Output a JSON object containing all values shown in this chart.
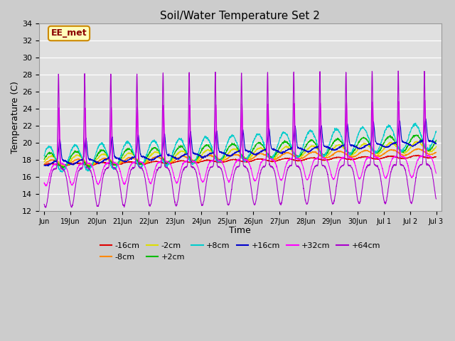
{
  "title": "Soil/Water Temperature Set 2",
  "xlabel": "Time",
  "ylabel": "Temperature (C)",
  "ylim": [
    12,
    34
  ],
  "yticks": [
    12,
    14,
    16,
    18,
    20,
    22,
    24,
    26,
    28,
    30,
    32,
    34
  ],
  "facecolor": "#e8e8e8",
  "series": [
    {
      "label": "-16cm",
      "color": "#dd0000"
    },
    {
      "label": "-8cm",
      "color": "#ff8800"
    },
    {
      "label": "-2cm",
      "color": "#dddd00"
    },
    {
      "label": "+2cm",
      "color": "#00bb00"
    },
    {
      "label": "+8cm",
      "color": "#00cccc"
    },
    {
      "label": "+16cm",
      "color": "#0000cc"
    },
    {
      "label": "+32cm",
      "color": "#ff00ff"
    },
    {
      "label": "+64cm",
      "color": "#aa00cc"
    }
  ],
  "watermark": "EE_met",
  "n_days": 15,
  "samples_per_hour": 6
}
